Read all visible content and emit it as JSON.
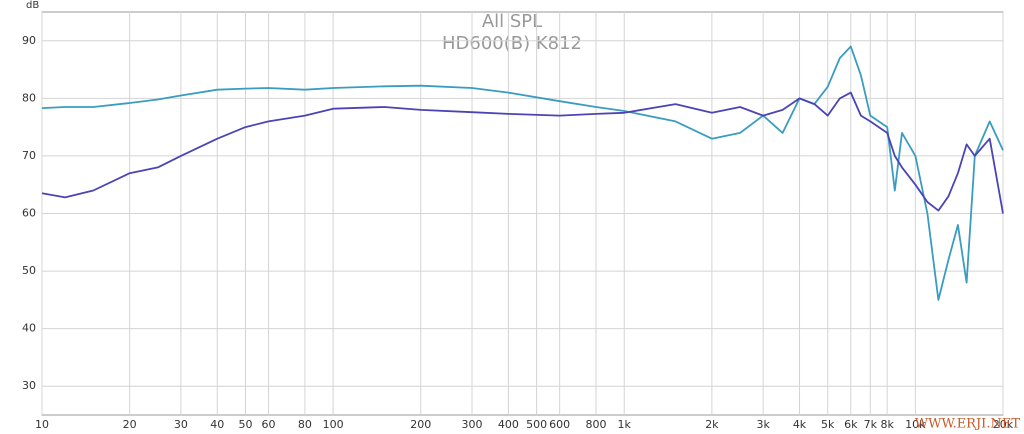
{
  "chart_data": {
    "type": "line",
    "title": "All SPL",
    "subtitle": "HD600(B) K812",
    "y_label": "dB",
    "watermark": "WWW.ERJI.NET",
    "log_x": true,
    "grid": true,
    "xlim": [
      10,
      20000
    ],
    "ylim": [
      25,
      95
    ],
    "xticks": [
      10,
      20,
      30,
      40,
      50,
      60,
      80,
      100,
      200,
      300,
      400,
      500,
      600,
      800,
      {
        "value": 1000,
        "label": "1k"
      },
      {
        "value": 2000,
        "label": "2k"
      },
      {
        "value": 3000,
        "label": "3k"
      },
      {
        "value": 4000,
        "label": "4k"
      },
      {
        "value": 5000,
        "label": "5k"
      },
      {
        "value": 6000,
        "label": "6k"
      },
      {
        "value": 7000,
        "label": "7k"
      },
      {
        "value": 8000,
        "label": "8k"
      },
      {
        "value": 10000,
        "label": "10k"
      },
      {
        "value": 20000,
        "label": "20k"
      }
    ],
    "yticks": [
      30,
      40,
      50,
      60,
      70,
      80,
      90
    ],
    "x": [
      10,
      12,
      15,
      20,
      25,
      30,
      40,
      50,
      60,
      80,
      100,
      150,
      200,
      300,
      400,
      600,
      800,
      1000,
      1500,
      2000,
      2500,
      3000,
      3500,
      4000,
      4500,
      5000,
      5500,
      6000,
      6500,
      7000,
      8000,
      8500,
      9000,
      10000,
      11000,
      12000,
      13000,
      14000,
      15000,
      16000,
      18000,
      20000
    ],
    "series": [
      {
        "color": "#3a9cc0",
        "values": [
          78.3,
          78.5,
          78.5,
          79.2,
          79.8,
          80.5,
          81.5,
          81.7,
          81.8,
          81.5,
          81.8,
          82.1,
          82.2,
          81.8,
          81,
          79.5,
          78.5,
          77.8,
          76,
          73,
          74,
          77,
          74,
          80,
          79,
          82,
          87,
          89,
          84,
          77,
          75,
          64,
          74,
          70,
          60,
          45,
          52,
          58,
          48,
          70,
          76,
          71
        ]
      },
      {
        "color": "#4a44b4",
        "values": [
          63.5,
          62.8,
          64,
          67,
          68,
          70,
          73,
          75,
          76,
          77,
          78.2,
          78.5,
          78,
          77.6,
          77.3,
          77,
          77.3,
          77.5,
          79,
          77.5,
          78.5,
          77,
          78,
          80,
          79,
          77,
          80,
          81,
          77,
          76,
          74,
          70,
          68,
          65,
          62,
          60.5,
          63,
          67,
          72,
          70,
          73,
          60
        ]
      }
    ]
  }
}
